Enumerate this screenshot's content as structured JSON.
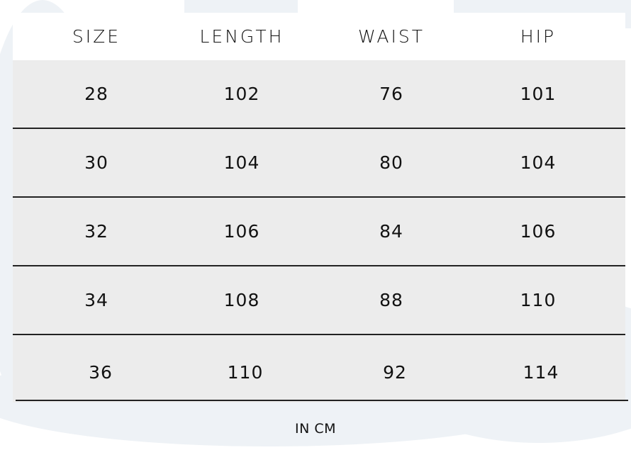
{
  "table": {
    "headers": [
      "SIZE",
      "LENGTH",
      "WAIST",
      "HIP"
    ],
    "rows": [
      [
        "28",
        "102",
        "76",
        "101"
      ],
      [
        "30",
        "104",
        "80",
        "104"
      ],
      [
        "32",
        "106",
        "84",
        "106"
      ],
      [
        "34",
        "108",
        "88",
        "110"
      ],
      [
        "36",
        "110",
        "92",
        "114"
      ]
    ]
  },
  "caption": "IN CM",
  "colors": {
    "row_fill": "#ececec",
    "divider": "#222222",
    "background_shapes": "#e9eef3"
  }
}
